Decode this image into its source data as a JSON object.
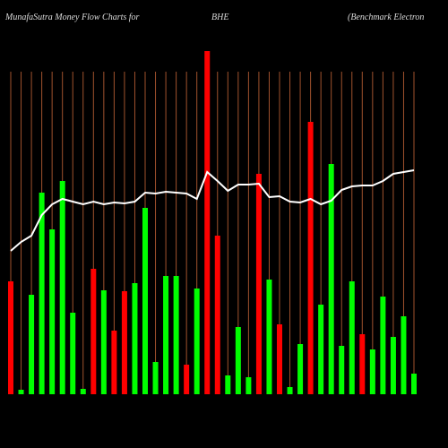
{
  "chart_data": {
    "type": "bar",
    "title_parts": [
      "MunafaSutra  Money Flow  Charts for",
      "BHE",
      "(Benchmark Electron"
    ],
    "ylim": [
      0,
      440
    ],
    "bars": {
      "values": [
        126,
        5,
        111,
        225,
        184,
        238,
        91,
        6,
        140,
        116,
        71,
        115,
        124,
        208,
        36,
        132,
        132,
        33,
        118,
        383,
        177,
        21,
        75,
        19,
        246,
        128,
        78,
        8,
        56,
        304,
        100,
        257,
        54,
        126,
        67,
        50,
        109,
        64,
        87,
        23
      ],
      "colors": [
        "#ff0000",
        "#00ff00",
        "#00ff00",
        "#00ff00",
        "#00ff00",
        "#00ff00",
        "#00ff00",
        "#00ff00",
        "#ff0000",
        "#00ff00",
        "#ff0000",
        "#ff0000",
        "#00ff00",
        "#00ff00",
        "#00ff00",
        "#00ff00",
        "#00ff00",
        "#ff0000",
        "#00ff00",
        "#ff0000",
        "#ff0000",
        "#00ff00",
        "#00ff00",
        "#00ff00",
        "#ff0000",
        "#00ff00",
        "#ff0000",
        "#00ff00",
        "#00ff00",
        "#ff0000",
        "#00ff00",
        "#00ff00",
        "#00ff00",
        "#00ff00",
        "#ff0000",
        "#00ff00",
        "#00ff00",
        "#00ff00",
        "#00ff00",
        "#00ff00"
      ]
    },
    "line": {
      "color": "#ffffff",
      "values": [
        160,
        170,
        177,
        200,
        212,
        218,
        215,
        212,
        215,
        212,
        214,
        213,
        215,
        225,
        224,
        226,
        225,
        224,
        218,
        248,
        238,
        227,
        234,
        234,
        235,
        220,
        221,
        215,
        214,
        218,
        212,
        216,
        228,
        232,
        233,
        233,
        238,
        246,
        248,
        250
      ]
    }
  }
}
